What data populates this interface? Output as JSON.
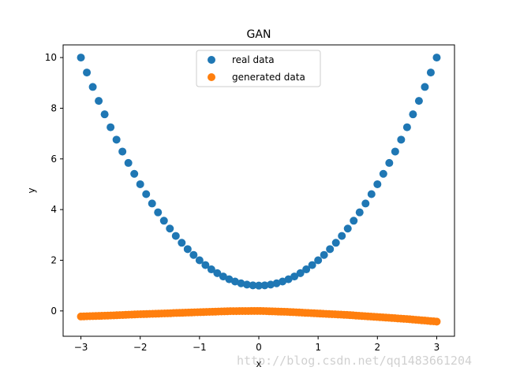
{
  "chart_data": {
    "type": "scatter",
    "title": "GAN",
    "xlabel": "x",
    "ylabel": "y",
    "xlim": [
      -3.3,
      3.3
    ],
    "ylim": [
      -1.0,
      10.5
    ],
    "xticks": [
      -3,
      -2,
      -1,
      0,
      1,
      2,
      3
    ],
    "yticks": [
      0,
      2,
      4,
      6,
      8,
      10
    ],
    "grid": false,
    "legend_position": "top-center",
    "series": [
      {
        "name": "real data",
        "color": "#1f77b4",
        "x_range": [
          -3,
          3
        ],
        "points": 61,
        "formula": "x^2 + 1"
      },
      {
        "name": "generated data",
        "color": "#ff7f0e",
        "x_range": [
          -3,
          3
        ],
        "points": 120,
        "y_samples": [
          [
            -3,
            -0.22
          ],
          [
            -2.5,
            -0.18
          ],
          [
            -2,
            -0.13
          ],
          [
            -1.5,
            -0.09
          ],
          [
            -1,
            -0.05
          ],
          [
            -0.5,
            -0.01
          ],
          [
            0,
            0.0
          ],
          [
            0.5,
            -0.04
          ],
          [
            1,
            -0.1
          ],
          [
            1.5,
            -0.16
          ],
          [
            2,
            -0.24
          ],
          [
            2.5,
            -0.32
          ],
          [
            3,
            -0.42
          ]
        ]
      }
    ]
  },
  "watermark": "http://blog.csdn.net/qq1483661204"
}
